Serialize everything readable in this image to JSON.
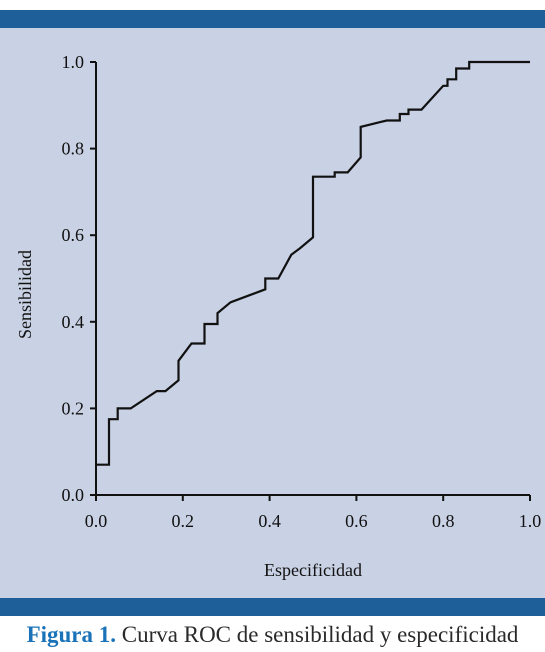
{
  "colors": {
    "band": "#1f5f99",
    "panel": "#c9d1e4",
    "curve": "#111111",
    "caption_label": "#1a73b8"
  },
  "caption": {
    "label": "Figura 1.",
    "text": "Curva ROC de sensibilidad y especificidad"
  },
  "chart_data": {
    "type": "line",
    "xlabel": "Especificidad",
    "ylabel": "Sensibilidad",
    "xlim": [
      0,
      1
    ],
    "ylim": [
      0,
      1
    ],
    "xticks": [
      "0.0",
      "0.2",
      "0.4",
      "0.6",
      "0.8",
      "1.0"
    ],
    "yticks": [
      "0.0",
      "0.2",
      "0.4",
      "0.6",
      "0.8",
      "1.0"
    ],
    "grid": false,
    "series": [
      {
        "x": [
          0.0,
          0.03,
          0.03,
          0.05,
          0.05,
          0.08,
          0.14,
          0.16,
          0.19,
          0.19,
          0.22,
          0.25,
          0.25,
          0.28,
          0.28,
          0.31,
          0.35,
          0.39,
          0.39,
          0.42,
          0.45,
          0.47,
          0.5,
          0.5,
          0.55,
          0.55,
          0.58,
          0.61,
          0.61,
          0.67,
          0.7,
          0.7,
          0.72,
          0.72,
          0.75,
          0.8,
          0.81,
          0.81,
          0.83,
          0.83,
          0.86,
          0.86,
          1.0
        ],
        "y": [
          0.07,
          0.07,
          0.175,
          0.175,
          0.2,
          0.2,
          0.24,
          0.24,
          0.265,
          0.31,
          0.35,
          0.35,
          0.395,
          0.395,
          0.42,
          0.445,
          0.46,
          0.475,
          0.5,
          0.5,
          0.555,
          0.57,
          0.595,
          0.735,
          0.735,
          0.745,
          0.745,
          0.78,
          0.85,
          0.865,
          0.865,
          0.88,
          0.88,
          0.89,
          0.89,
          0.945,
          0.945,
          0.96,
          0.96,
          0.985,
          0.985,
          1.0,
          1.0
        ]
      }
    ]
  }
}
